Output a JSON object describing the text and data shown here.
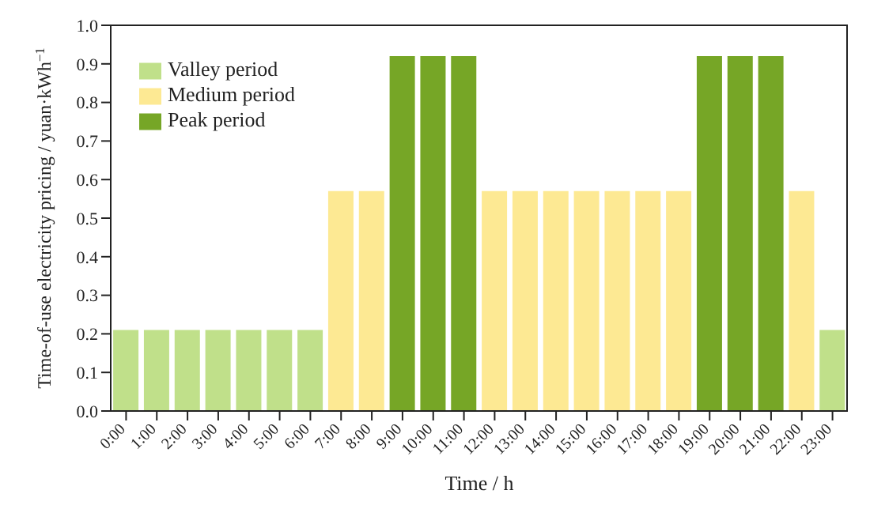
{
  "chart_data": {
    "type": "bar",
    "stacked": true,
    "xlabel": "Time / h",
    "ylabel": "Time-of-use electricity pricing / yuan·kWh$^{−1}$",
    "categories": [
      "0:00",
      "1:00",
      "2:00",
      "3:00",
      "4:00",
      "5:00",
      "6:00",
      "7:00",
      "8:00",
      "9:00",
      "10:00",
      "11:00",
      "12:00",
      "13:00",
      "14:00",
      "15:00",
      "16:00",
      "17:00",
      "18:00",
      "19:00",
      "20:00",
      "21:00",
      "22:00",
      "23:00"
    ],
    "series": [
      {
        "name": "Valley period",
        "color": "#c0e08a",
        "values": [
          0.21,
          0.21,
          0.21,
          0.21,
          0.21,
          0.21,
          0.21,
          null,
          null,
          null,
          null,
          null,
          null,
          null,
          null,
          null,
          null,
          null,
          null,
          null,
          null,
          null,
          null,
          0.21
        ]
      },
      {
        "name": "Medium period",
        "color": "#fde993",
        "values": [
          null,
          null,
          null,
          null,
          null,
          null,
          null,
          0.57,
          0.57,
          null,
          null,
          null,
          0.57,
          0.57,
          0.57,
          0.57,
          0.57,
          0.57,
          0.57,
          null,
          null,
          null,
          0.57,
          null
        ]
      },
      {
        "name": "Peak period",
        "color": "#76a626",
        "values": [
          null,
          null,
          null,
          null,
          null,
          null,
          null,
          null,
          null,
          0.92,
          0.92,
          0.92,
          null,
          null,
          null,
          null,
          null,
          null,
          null,
          0.92,
          0.92,
          0.92,
          null,
          null
        ]
      }
    ],
    "ylim": [
      0,
      1
    ],
    "yticks": [
      {
        "value": 0,
        "label": "0.0"
      },
      {
        "value": 0.1,
        "label": "0.1"
      },
      {
        "value": 0.2,
        "label": "0.2"
      },
      {
        "value": 0.3,
        "label": "0.3"
      },
      {
        "value": 0.4,
        "label": "0.4"
      },
      {
        "value": 0.5,
        "label": "0.5"
      },
      {
        "value": 0.6,
        "label": "0.6"
      },
      {
        "value": 0.7,
        "label": "0.7"
      },
      {
        "value": 0.8,
        "label": "0.8"
      },
      {
        "value": 0.9,
        "label": "0.9"
      },
      {
        "value": 1,
        "label": "1.0"
      }
    ],
    "grid": false,
    "legend": "top left"
  }
}
